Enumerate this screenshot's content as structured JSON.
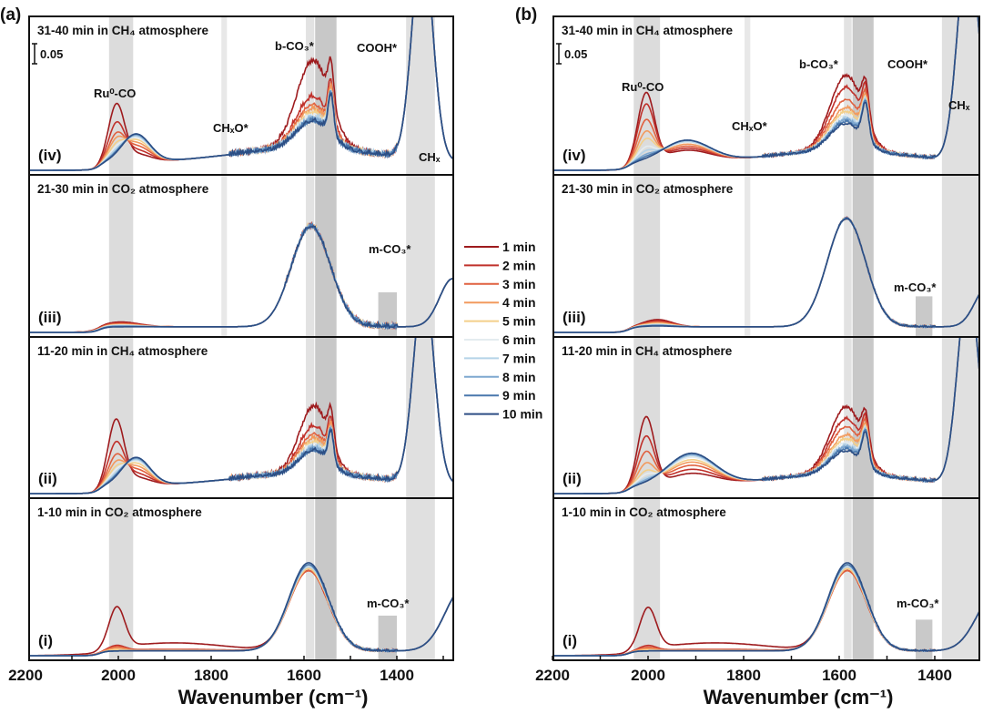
{
  "chart_data": {
    "type": "line",
    "xlabel": "Wavenumber (cm⁻¹)",
    "ylabel": "",
    "scale_bar": {
      "label": "0.05",
      "value": 0.05
    },
    "xticks": [
      2200,
      2000,
      1800,
      1600,
      1400
    ],
    "tick_labels": [
      "2200",
      "2000",
      "1800",
      "1600",
      "1400"
    ],
    "legend": {
      "placement": "center, between panels",
      "entries": [
        "1 min",
        "2 min",
        "3 min",
        "4 min",
        "5 min",
        "6 min",
        "7 min",
        "8 min",
        "9 min",
        "10 min"
      ],
      "colors": [
        "#9e1b1e",
        "#c0312b",
        "#e0603f",
        "#f29a5e",
        "#f3cf8a",
        "#e4ecf0",
        "#b5d3e8",
        "#7ea8d0",
        "#4a78ad",
        "#2c4e84"
      ]
    },
    "panels": [
      {
        "label": "(a)",
        "xlim": [
          2200,
          1280
        ],
        "ylim": [
          0,
          0.38
        ],
        "bands": [
          {
            "range": [
              2020,
              1968
            ],
            "shade": "#dcdcdc",
            "subpanels": [
              0,
              1,
              2,
              3
            ]
          },
          {
            "range": [
              1596,
              1578
            ],
            "shade": "#e2e2e2",
            "subpanels": [
              0,
              1,
              2,
              3
            ]
          },
          {
            "range": [
              1576,
              1530
            ],
            "shade": "#c8c8c8",
            "subpanels": [
              0,
              1,
              2,
              3
            ]
          },
          {
            "range": [
              1778,
              1766
            ],
            "shade": "#e8e8e8",
            "subpanels": [
              2,
              3
            ]
          },
          {
            "range": [
              1380,
              1318
            ],
            "shade": "#e0e0e0",
            "subpanels": [
              0,
              1,
              2,
              3
            ]
          },
          {
            "range": [
              1440,
              1400
            ],
            "shade": "#c9c9c9",
            "subpanels": [
              0,
              2
            ],
            "height": 0.1
          }
        ],
        "subpanels": [
          {
            "roman": "(i)",
            "title": "1-10 min in CO₂ atmosphere",
            "annotations": [
              "m-CO₃*"
            ],
            "baseline": 0.012,
            "noise": 0.006,
            "noise_range": [
              1560,
              1400
            ],
            "peaks": [
              {
                "c": 2003,
                "w": 17,
                "amp": [
                  0.1,
                  0.012,
                  0.009,
                  0.006,
                  0.003,
                  0,
                  0,
                  0,
                  0,
                  0
                ]
              },
              {
                "c": 1880,
                "w": 110,
                "amp": [
                  0.02,
                  0.004,
                  0.003,
                  0.002,
                  0,
                  0,
                  0,
                  0,
                  0,
                  0
                ]
              },
              {
                "c": 1590,
                "w": 42,
                "amp": [
                  0.2,
                  0.2,
                  0.2,
                  0.205,
                  0.205,
                  0.21,
                  0.21,
                  0.215,
                  0.215,
                  0.22
                ]
              },
              {
                "c": 1255,
                "w": 40,
                "amp": 0.16
              }
            ]
          },
          {
            "roman": "(ii)",
            "title": "11-20 min in CH₄ atmosphere",
            "annotations": [],
            "baseline": 0.018,
            "noise": 0.012,
            "noise_range": [
              1760,
              1400
            ],
            "peaks": [
              {
                "c": 2005,
                "w": 17,
                "amp": [
                  0.16,
                  0.1,
                  0.065,
                  0.045,
                  0.03,
                  0.02,
                  0.012,
                  0.006,
                  0.003,
                  0
                ]
              },
              {
                "c": 1962,
                "w": 30,
                "amp": [
                  0.02,
                  0.03,
                  0.04,
                  0.048,
                  0.055,
                  0.06,
                  0.064,
                  0.067,
                  0.07,
                  0.07
                ]
              },
              {
                "c": 1600,
                "w": 160,
                "amp": 0.03
              },
              {
                "c": 1578,
                "w": 32,
                "amp": [
                  0.17,
                  0.12,
                  0.1,
                  0.09,
                  0.08,
                  0.075,
                  0.07,
                  0.065,
                  0.06,
                  0.06
                ]
              },
              {
                "c": 1542,
                "w": 6,
                "amp": 0.08
              },
              {
                "c": 1342,
                "w": 22,
                "amp": 0.5
              }
            ]
          },
          {
            "roman": "(iii)",
            "title": "21-30 min in CO₂ atmosphere",
            "annotations": [
              "m-CO₃*"
            ],
            "baseline": 0.014,
            "noise": 0.012,
            "noise_range": [
              1640,
              1400
            ],
            "peaks": [
              {
                "c": 1995,
                "w": 40,
                "amp": [
                  0.012,
                  0.01,
                  0.008,
                  0.006,
                  0.005,
                  0.004,
                  0.003,
                  0.002,
                  0.001,
                  0
                ]
              },
              {
                "c": 1585,
                "w": 42,
                "amp": 0.25
              },
              {
                "c": 1280,
                "w": 28,
                "amp": 0.12
              }
            ]
          },
          {
            "roman": "(iv)",
            "title": "31-40 min in CH₄ atmosphere",
            "annotations": [
              "Ru⁰-CO",
              "CHₓO*",
              "b-CO₃*",
              "COOH*",
              "CHₓ"
            ],
            "baseline": 0.018,
            "noise": 0.014,
            "noise_range": [
              1760,
              1400
            ],
            "peaks": [
              {
                "c": 2004,
                "w": 17,
                "amp": [
                  0.14,
                  0.09,
                  0.06,
                  0.045,
                  0.03,
                  0.02,
                  0.012,
                  0.006,
                  0.003,
                  0
                ]
              },
              {
                "c": 1962,
                "w": 30,
                "amp": [
                  0.02,
                  0.03,
                  0.04,
                  0.048,
                  0.055,
                  0.06,
                  0.064,
                  0.067,
                  0.07,
                  0.07
                ]
              },
              {
                "c": 1600,
                "w": 160,
                "amp": 0.035
              },
              {
                "c": 1580,
                "w": 36,
                "amp": [
                  0.22,
                  0.13,
                  0.11,
                  0.1,
                  0.09,
                  0.085,
                  0.08,
                  0.075,
                  0.07,
                  0.07
                ]
              },
              {
                "c": 1542,
                "w": 6,
                "amp": 0.1
              },
              {
                "c": 1345,
                "w": 22,
                "amp": 0.55
              }
            ]
          }
        ]
      },
      {
        "label": "(b)",
        "xlim": [
          2200,
          1290
        ],
        "ylim": [
          0,
          0.38
        ],
        "bands": [
          {
            "range": [
              2030,
              1975
            ],
            "shade": "#dcdcdc",
            "subpanels": [
              0,
              1,
              2,
              3
            ]
          },
          {
            "range": [
              1590,
              1574
            ],
            "shade": "#e2e2e2",
            "subpanels": [
              0,
              1,
              2,
              3
            ]
          },
          {
            "range": [
              1572,
              1528
            ],
            "shade": "#c8c8c8",
            "subpanels": [
              0,
              1,
              2,
              3
            ]
          },
          {
            "range": [
              1798,
              1786
            ],
            "shade": "#e8e8e8",
            "subpanels": [
              2,
              3
            ]
          },
          {
            "range": [
              1385,
              1305
            ],
            "shade": "#e0e0e0",
            "subpanels": [
              0,
              1,
              2,
              3
            ]
          },
          {
            "range": [
              1440,
              1405
            ],
            "shade": "#c9c9c9",
            "subpanels": [
              0,
              2
            ],
            "height": 0.09
          }
        ],
        "subpanels": [
          {
            "roman": "(i)",
            "title": "1-10 min in CO₂ atmosphere",
            "annotations": [
              "m-CO₃*"
            ],
            "baseline": 0.012,
            "noise": 0.004,
            "noise_range": [
              1560,
              1400
            ],
            "peaks": [
              {
                "c": 2000,
                "w": 17,
                "amp": [
                  0.1,
                  0.012,
                  0.008,
                  0.005,
                  0.002,
                  0,
                  0,
                  0,
                  0,
                  0
                ]
              },
              {
                "c": 1860,
                "w": 110,
                "amp": [
                  0.02,
                  0.004,
                  0.003,
                  0.002,
                  0,
                  0,
                  0,
                  0,
                  0,
                  0
                ]
              },
              {
                "c": 1583,
                "w": 40,
                "amp": [
                  0.2,
                  0.2,
                  0.2,
                  0.205,
                  0.205,
                  0.21,
                  0.21,
                  0.215,
                  0.215,
                  0.22
                ]
              },
              {
                "c": 1270,
                "w": 40,
                "amp": 0.15
              }
            ]
          },
          {
            "roman": "(ii)",
            "title": "11-20 min in CH₄ atmosphere",
            "annotations": [],
            "baseline": 0.016,
            "noise": 0.008,
            "noise_range": [
              1760,
              1400
            ],
            "peaks": [
              {
                "c": 2004,
                "w": 17,
                "amp": [
                  0.17,
                  0.12,
                  0.08,
                  0.05,
                  0.03,
                  0.02,
                  0.01,
                  0.005,
                  0,
                  0
                ]
              },
              {
                "c": 1910,
                "w": 50,
                "amp": [
                  0.03,
                  0.04,
                  0.05,
                  0.058,
                  0.064,
                  0.07,
                  0.074,
                  0.077,
                  0.08,
                  0.08
                ]
              },
              {
                "c": 1600,
                "w": 160,
                "amp": 0.03
              },
              {
                "c": 1585,
                "w": 34,
                "amp": [
                  0.17,
                  0.14,
                  0.12,
                  0.1,
                  0.09,
                  0.08,
                  0.075,
                  0.07,
                  0.065,
                  0.06
                ]
              },
              {
                "c": 1545,
                "w": 7,
                "amp": 0.08
              },
              {
                "c": 1330,
                "w": 22,
                "amp": 0.5
              }
            ]
          },
          {
            "roman": "(iii)",
            "title": "21-30 min in CO₂ atmosphere",
            "annotations": [
              "m-CO₃*"
            ],
            "baseline": 0.014,
            "noise": 0.005,
            "noise_range": [
              1600,
              1400
            ],
            "peaks": [
              {
                "c": 1980,
                "w": 30,
                "amp": [
                  0.018,
                  0.015,
                  0.012,
                  0.01,
                  0.008,
                  0.006,
                  0.005,
                  0.004,
                  0.003,
                  0.002
                ]
              },
              {
                "c": 1585,
                "w": 40,
                "amp": 0.27
              },
              {
                "c": 1290,
                "w": 26,
                "amp": 0.1
              }
            ]
          },
          {
            "roman": "(iv)",
            "title": "31-40 min in CH₄ atmosphere",
            "annotations": [
              "Ru⁰-CO",
              "CHₓO*",
              "b-CO₃*",
              "COOH*",
              "CHₓ"
            ],
            "baseline": 0.016,
            "noise": 0.008,
            "noise_range": [
              1760,
              1400
            ],
            "peaks": [
              {
                "c": 2004,
                "w": 17,
                "amp": [
                  0.17,
                  0.14,
                  0.1,
                  0.07,
                  0.05,
                  0.03,
                  0.02,
                  0.01,
                  0.005,
                  0
                ]
              },
              {
                "c": 1920,
                "w": 50,
                "amp": [
                  0.03,
                  0.035,
                  0.04,
                  0.045,
                  0.05,
                  0.05,
                  0.052,
                  0.055,
                  0.055,
                  0.055
                ]
              },
              {
                "c": 1600,
                "w": 160,
                "amp": 0.03
              },
              {
                "c": 1585,
                "w": 34,
                "amp": [
                  0.19,
                  0.16,
                  0.13,
                  0.11,
                  0.1,
                  0.09,
                  0.085,
                  0.08,
                  0.075,
                  0.07
                ]
              },
              {
                "c": 1545,
                "w": 7,
                "amp": 0.09
              },
              {
                "c": 1330,
                "w": 22,
                "amp": 0.55
              }
            ]
          }
        ]
      }
    ]
  }
}
